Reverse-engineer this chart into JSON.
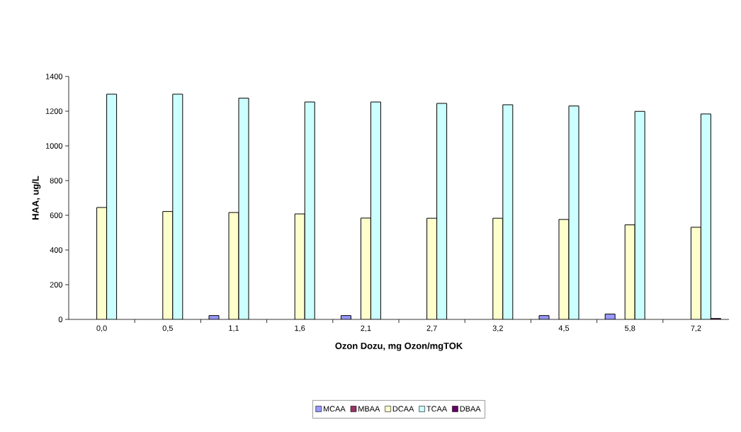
{
  "chart_data": {
    "type": "bar",
    "xlabel": "Ozon Dozu, mg Ozon/mgTOK",
    "ylabel": "HAA, ug/L",
    "categories": [
      "0,0",
      "0,5",
      "1,1",
      "1,6",
      "2,1",
      "2,7",
      "3,2",
      "4,5",
      "5,8",
      "7,2"
    ],
    "series": [
      {
        "name": "MCAA",
        "color": "#9999ff",
        "values": [
          null,
          null,
          22,
          null,
          22,
          null,
          null,
          22,
          31,
          null
        ]
      },
      {
        "name": "MBAA",
        "color": "#993366",
        "values": [
          null,
          null,
          null,
          null,
          null,
          null,
          null,
          null,
          null,
          null
        ]
      },
      {
        "name": "DCAA",
        "color": "#ffffcc",
        "values": [
          645,
          622,
          616,
          608,
          584,
          583,
          583,
          576,
          545,
          531
        ]
      },
      {
        "name": "TCAA",
        "color": "#ccffff",
        "values": [
          1298,
          1298,
          1275,
          1253,
          1253,
          1245,
          1237,
          1230,
          1199,
          1184
        ]
      },
      {
        "name": "DBAA",
        "color": "#660066",
        "values": [
          null,
          null,
          null,
          null,
          null,
          null,
          null,
          null,
          null,
          5
        ]
      }
    ],
    "ylim": [
      0,
      1400
    ],
    "yticks": [
      0,
      200,
      400,
      600,
      800,
      1000,
      1200,
      1400
    ],
    "legend": "bottom"
  }
}
